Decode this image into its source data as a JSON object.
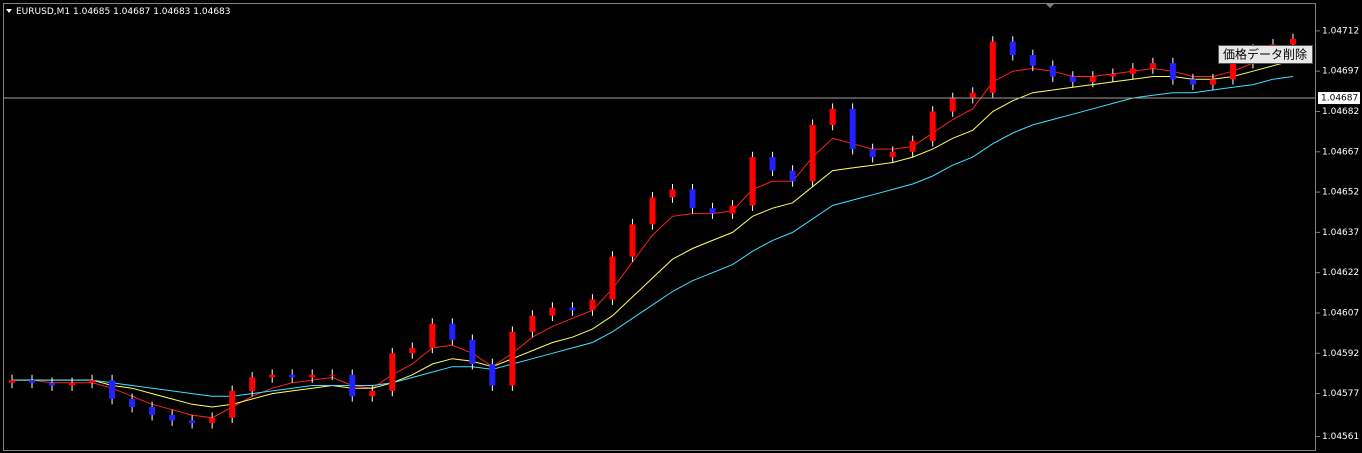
{
  "chart_data": {
    "type": "candlestick",
    "symbol": "EURUSD,M1",
    "header_ohlc": [
      1.04685,
      1.04687,
      1.04683,
      1.04683
    ],
    "open": [
      1.04581,
      1.04582,
      1.04581,
      1.0458,
      1.04581,
      1.04582,
      1.04575,
      1.04572,
      1.04569,
      1.04567,
      1.04566,
      1.04568,
      1.04578,
      1.04583,
      1.04584,
      1.04583,
      1.04584,
      1.04584,
      1.04576,
      1.04578,
      1.04592,
      1.04594,
      1.04603,
      1.04597,
      1.04588,
      1.0458,
      1.046,
      1.04606,
      1.04609,
      1.04608,
      1.04612,
      1.04628,
      1.0464,
      1.0465,
      1.04653,
      1.04646,
      1.04644,
      1.04647,
      1.04665,
      1.0466,
      1.04656,
      1.04677,
      1.04683,
      1.04668,
      1.04665,
      1.04667,
      1.04671,
      1.04682,
      1.04687,
      1.04689,
      1.04708,
      1.04703,
      1.04699,
      1.04695,
      1.04693,
      1.04695,
      1.04696,
      1.04698,
      1.047,
      1.04694,
      1.04692,
      1.04694,
      1.047,
      1.04705,
      1.04707
    ],
    "high": [
      1.04584,
      1.04584,
      1.04583,
      1.04583,
      1.04584,
      1.04584,
      1.04577,
      1.04574,
      1.04571,
      1.04569,
      1.0457,
      1.0458,
      1.04585,
      1.04586,
      1.04586,
      1.04586,
      1.04586,
      1.04586,
      1.0458,
      1.04594,
      1.04596,
      1.04605,
      1.04605,
      1.04599,
      1.0459,
      1.04602,
      1.04608,
      1.04611,
      1.04611,
      1.04614,
      1.0463,
      1.04642,
      1.04652,
      1.04655,
      1.04655,
      1.04648,
      1.04649,
      1.04667,
      1.04667,
      1.04662,
      1.04679,
      1.04685,
      1.04685,
      1.0467,
      1.04669,
      1.04673,
      1.04684,
      1.04689,
      1.04691,
      1.0471,
      1.0471,
      1.04705,
      1.04701,
      1.04697,
      1.04697,
      1.04698,
      1.047,
      1.04702,
      1.04702,
      1.04696,
      1.04696,
      1.04702,
      1.04707,
      1.04709,
      1.04711
    ],
    "low": [
      1.04579,
      1.04579,
      1.04578,
      1.04578,
      1.04579,
      1.04573,
      1.0457,
      1.04567,
      1.04565,
      1.04564,
      1.04564,
      1.04566,
      1.04576,
      1.04581,
      1.04581,
      1.04581,
      1.04582,
      1.04574,
      1.04574,
      1.04576,
      1.0459,
      1.04592,
      1.04595,
      1.04586,
      1.04578,
      1.04578,
      1.04598,
      1.04604,
      1.04606,
      1.04606,
      1.0461,
      1.04626,
      1.04638,
      1.04648,
      1.04644,
      1.04642,
      1.04642,
      1.04645,
      1.04658,
      1.04654,
      1.04654,
      1.04675,
      1.04666,
      1.04663,
      1.04663,
      1.04665,
      1.04669,
      1.0468,
      1.04685,
      1.04687,
      1.04701,
      1.04697,
      1.04693,
      1.04691,
      1.04691,
      1.04693,
      1.04694,
      1.04696,
      1.04692,
      1.0469,
      1.0469,
      1.04692,
      1.04698,
      1.04703,
      1.04705
    ],
    "close": [
      1.04582,
      1.04581,
      1.0458,
      1.04581,
      1.04582,
      1.04575,
      1.04572,
      1.04569,
      1.04567,
      1.04566,
      1.04568,
      1.04578,
      1.04583,
      1.04584,
      1.04583,
      1.04584,
      1.04584,
      1.04576,
      1.04578,
      1.04592,
      1.04594,
      1.04603,
      1.04597,
      1.04588,
      1.0458,
      1.046,
      1.04606,
      1.04609,
      1.04608,
      1.04612,
      1.04628,
      1.0464,
      1.0465,
      1.04653,
      1.04646,
      1.04644,
      1.04647,
      1.04665,
      1.0466,
      1.04656,
      1.04677,
      1.04683,
      1.04668,
      1.04665,
      1.04667,
      1.04671,
      1.04682,
      1.04687,
      1.04689,
      1.04708,
      1.04703,
      1.04699,
      1.04695,
      1.04693,
      1.04695,
      1.04696,
      1.04698,
      1.047,
      1.04694,
      1.04692,
      1.04694,
      1.047,
      1.04705,
      1.04707,
      1.04709
    ],
    "up_color": "#ff0000",
    "down_color": "#2222ff",
    "series": [
      {
        "color": "#ff2020",
        "values": [
          1.04582,
          1.04582,
          1.04581,
          1.04581,
          1.04581,
          1.04579,
          1.04576,
          1.04573,
          1.04571,
          1.04569,
          1.04568,
          1.04572,
          1.04576,
          1.04579,
          1.04581,
          1.04582,
          1.04583,
          1.0458,
          1.04579,
          1.04584,
          1.04588,
          1.04594,
          1.04595,
          1.04592,
          1.04587,
          1.04592,
          1.04598,
          1.04602,
          1.04605,
          1.04608,
          1.04616,
          1.04626,
          1.04636,
          1.04643,
          1.04644,
          1.04644,
          1.04645,
          1.04653,
          1.04656,
          1.04656,
          1.04665,
          1.04672,
          1.0467,
          1.04668,
          1.04668,
          1.04669,
          1.04674,
          1.04679,
          1.04683,
          1.04693,
          1.04697,
          1.04698,
          1.04697,
          1.04695,
          1.04695,
          1.04696,
          1.04697,
          1.04698,
          1.04697,
          1.04695,
          1.04695,
          1.04697,
          1.047,
          1.04703,
          1.04705
        ]
      },
      {
        "color": "#ffff60",
        "values": [
          1.04582,
          1.04582,
          1.04582,
          1.04582,
          1.04582,
          1.0458,
          1.04579,
          1.04577,
          1.04575,
          1.04573,
          1.04572,
          1.04573,
          1.04575,
          1.04577,
          1.04578,
          1.04579,
          1.0458,
          1.04579,
          1.04579,
          1.04581,
          1.04584,
          1.04588,
          1.0459,
          1.04589,
          1.04587,
          1.0459,
          1.04593,
          1.04596,
          1.04598,
          1.04601,
          1.04606,
          1.04613,
          1.0462,
          1.04627,
          1.04631,
          1.04634,
          1.04637,
          1.04643,
          1.04646,
          1.04648,
          1.04654,
          1.0466,
          1.04661,
          1.04662,
          1.04663,
          1.04665,
          1.04668,
          1.04672,
          1.04675,
          1.04682,
          1.04686,
          1.04689,
          1.0469,
          1.04691,
          1.04692,
          1.04693,
          1.04694,
          1.04695,
          1.04695,
          1.04694,
          1.04694,
          1.04695,
          1.04697,
          1.04699,
          1.04701
        ]
      },
      {
        "color": "#40e0ff",
        "values": [
          1.04582,
          1.04582,
          1.04582,
          1.04582,
          1.04582,
          1.04581,
          1.0458,
          1.04579,
          1.04578,
          1.04577,
          1.04576,
          1.04576,
          1.04577,
          1.04578,
          1.04579,
          1.0458,
          1.0458,
          1.0458,
          1.0458,
          1.04581,
          1.04583,
          1.04585,
          1.04587,
          1.04587,
          1.04586,
          1.04588,
          1.0459,
          1.04592,
          1.04594,
          1.04596,
          1.046,
          1.04605,
          1.0461,
          1.04615,
          1.04619,
          1.04622,
          1.04625,
          1.0463,
          1.04634,
          1.04637,
          1.04642,
          1.04647,
          1.04649,
          1.04651,
          1.04653,
          1.04655,
          1.04658,
          1.04662,
          1.04665,
          1.0467,
          1.04674,
          1.04677,
          1.04679,
          1.04681,
          1.04683,
          1.04685,
          1.04687,
          1.04688,
          1.04689,
          1.04689,
          1.0469,
          1.04691,
          1.04692,
          1.04694,
          1.04695
        ]
      }
    ],
    "ylim": [
      1.04556,
      1.04722
    ],
    "yticks": [
      1.04561,
      1.04577,
      1.04592,
      1.04607,
      1.04622,
      1.04637,
      1.04652,
      1.04667,
      1.04682,
      1.04697,
      1.04712
    ],
    "current_price": 1.04687,
    "button_label": "価格データ削除"
  }
}
